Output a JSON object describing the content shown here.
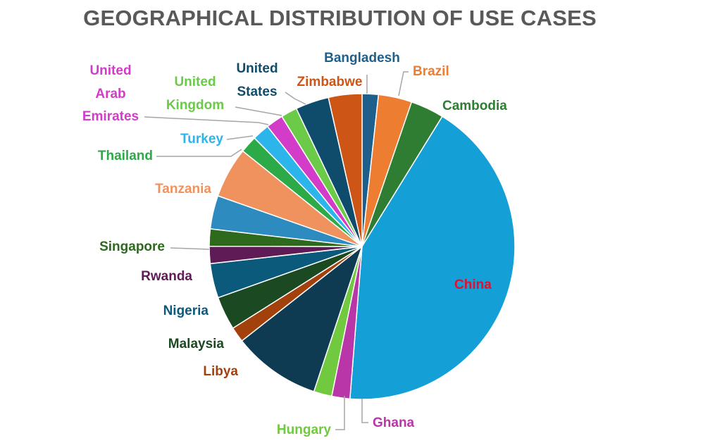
{
  "chart_data": {
    "type": "pie",
    "title": "GEOGRAPHICAL DISTRIBUTION OF USE CASES",
    "slices": [
      {
        "label": "Bangladesh",
        "value": 1.7,
        "color": "#1F5F8B",
        "label_color": "#1F5F8B"
      },
      {
        "label": "Brazil",
        "value": 3.5,
        "color": "#ED7D31",
        "label_color": "#ED7D31"
      },
      {
        "label": "Cambodia",
        "value": 3.5,
        "color": "#2E7D32",
        "label_color": "#2E7D32"
      },
      {
        "label": "China",
        "value": 42.0,
        "color": "#149FD6",
        "label_color": "#E0102E"
      },
      {
        "label": "Ghana",
        "value": 1.9,
        "color": "#B936A8",
        "label_color": "#B936A8"
      },
      {
        "label": "Hungary",
        "value": 1.9,
        "color": "#70C93F",
        "label_color": "#70C93F"
      },
      {
        "label": "",
        "value": 9.2,
        "color": "#0E3A52",
        "label_color": "#0E3A52"
      },
      {
        "label": "Libya",
        "value": 1.6,
        "color": "#A3410D",
        "label_color": "#A3410D"
      },
      {
        "label": "Malaysia",
        "value": 3.5,
        "color": "#1B4A22",
        "label_color": "#1B4A22"
      },
      {
        "label": "Nigeria",
        "value": 3.6,
        "color": "#0B5A7C",
        "label_color": "#0B5A7C"
      },
      {
        "label": "Rwanda",
        "value": 1.8,
        "color": "#5E1B55",
        "label_color": "#5E1B55"
      },
      {
        "label": "Singapore",
        "value": 1.8,
        "color": "#2D6A1E",
        "label_color": "#2D6A1E"
      },
      {
        "label": "",
        "value": 3.5,
        "color": "#2E8BC0",
        "label_color": "#2E8BC0"
      },
      {
        "label": "Tanzania",
        "value": 5.3,
        "color": "#F0925D",
        "label_color": "#F0925D"
      },
      {
        "label": "Thailand",
        "value": 1.8,
        "color": "#2DAA48",
        "label_color": "#2DAA48"
      },
      {
        "label": "Turkey",
        "value": 1.8,
        "color": "#2CB5EA",
        "label_color": "#2CB5EA"
      },
      {
        "label": "United Arab Emirates",
        "value": 1.8,
        "color": "#D23CC8",
        "label_color": "#D23CC8"
      },
      {
        "label": "United Kingdom",
        "value": 1.7,
        "color": "#6BCB48",
        "label_color": "#6BCB48"
      },
      {
        "label": "United States",
        "value": 3.5,
        "color": "#0F4C6B",
        "label_color": "#0F4C6B"
      },
      {
        "label": "Zimbabwe",
        "value": 3.5,
        "color": "#CD5515",
        "label_color": "#CD5515"
      }
    ],
    "legend": "none"
  }
}
